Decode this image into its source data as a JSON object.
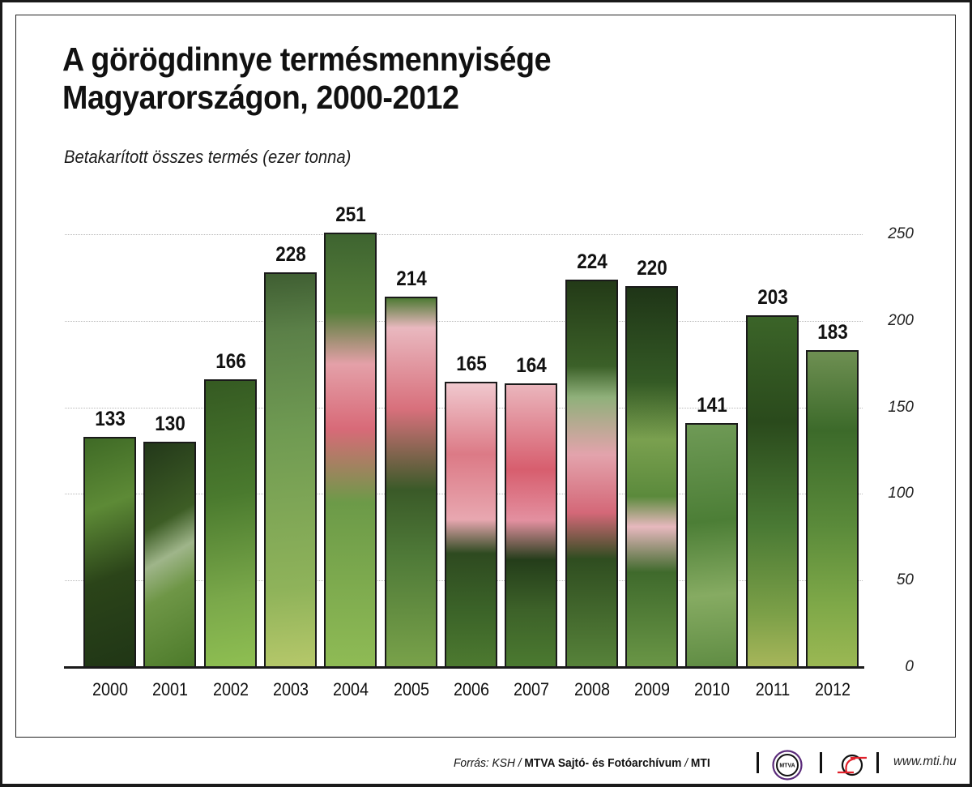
{
  "header": {
    "title_line1": "A görögdinnye termésmennyisége",
    "title_line2": "Magyarországon, 2000-2012",
    "subtitle": "Betakarított összes termés (ezer tonna)"
  },
  "footer": {
    "source_prefix": "Forrás: KSH / ",
    "source_bold": "MTVA Sajtó- és Fotóarchívum",
    "source_sep": " / ",
    "source_bold2": "MTI",
    "mtva_logo_text": "MTVA",
    "url": "www.mti.hu"
  },
  "colors": {
    "text": "#111111",
    "frame": "#1a1a1a",
    "grid": "#b8b8b8",
    "rind_dark": "#2f4a1f",
    "rind_light": "#6f9a3a",
    "flesh": "#d9606e",
    "mtva_logo": "#5a2a7a",
    "mti_logo_red": "#e0202a"
  },
  "chart_data": {
    "type": "bar",
    "title": "A görögdinnye termésmennyisége Magyarországon, 2000-2012",
    "subtitle": "Betakarított összes termés (ezer tonna)",
    "xlabel": "",
    "ylabel": "ezer tonna",
    "categories": [
      "2000",
      "2001",
      "2002",
      "2003",
      "2004",
      "2005",
      "2006",
      "2007",
      "2008",
      "2009",
      "2010",
      "2011",
      "2012"
    ],
    "values": [
      133,
      130,
      166,
      228,
      251,
      214,
      165,
      164,
      224,
      220,
      141,
      203,
      183
    ],
    "value_labels": [
      "133",
      "130",
      "166",
      "228",
      "251",
      "214",
      "165",
      "164",
      "224",
      "220",
      "141",
      "203",
      "183"
    ],
    "ylim": [
      0,
      250
    ],
    "yticks": [
      "250",
      "200",
      "150",
      "100",
      "50",
      "0"
    ],
    "ytick_values": [
      250,
      200,
      150,
      100,
      50,
      0
    ],
    "yaxis_position": "right",
    "grid": true,
    "legend": null,
    "bar_fill": "watermelon photograph"
  }
}
